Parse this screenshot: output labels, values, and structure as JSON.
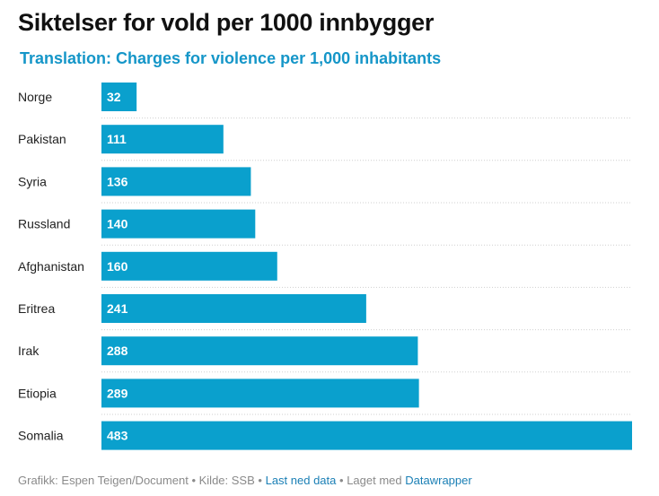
{
  "header": {
    "title": "Siktelser for vold per 1000 innbygger",
    "subtitle": "Translation: Charges for violence per 1,000 inhabitants"
  },
  "chart_data": {
    "type": "bar",
    "orientation": "horizontal",
    "categories": [
      "Norge",
      "Pakistan",
      "Syria",
      "Russland",
      "Afghanistan",
      "Eritrea",
      "Irak",
      "Etiopia",
      "Somalia"
    ],
    "values": [
      32,
      111,
      136,
      140,
      160,
      241,
      288,
      289,
      483
    ],
    "xlim": [
      0,
      483
    ],
    "bar_color": "#0aa0cd",
    "label_color": "#ffffff",
    "grid": false,
    "row_separators": "dotted"
  },
  "footer": {
    "credit": "Grafikk: Espen Teigen/Document",
    "source": "Kilde: SSB",
    "download_link": "Last ned data",
    "made_with": "Laget med",
    "tool_link": "Datawrapper",
    "separator": "•"
  }
}
